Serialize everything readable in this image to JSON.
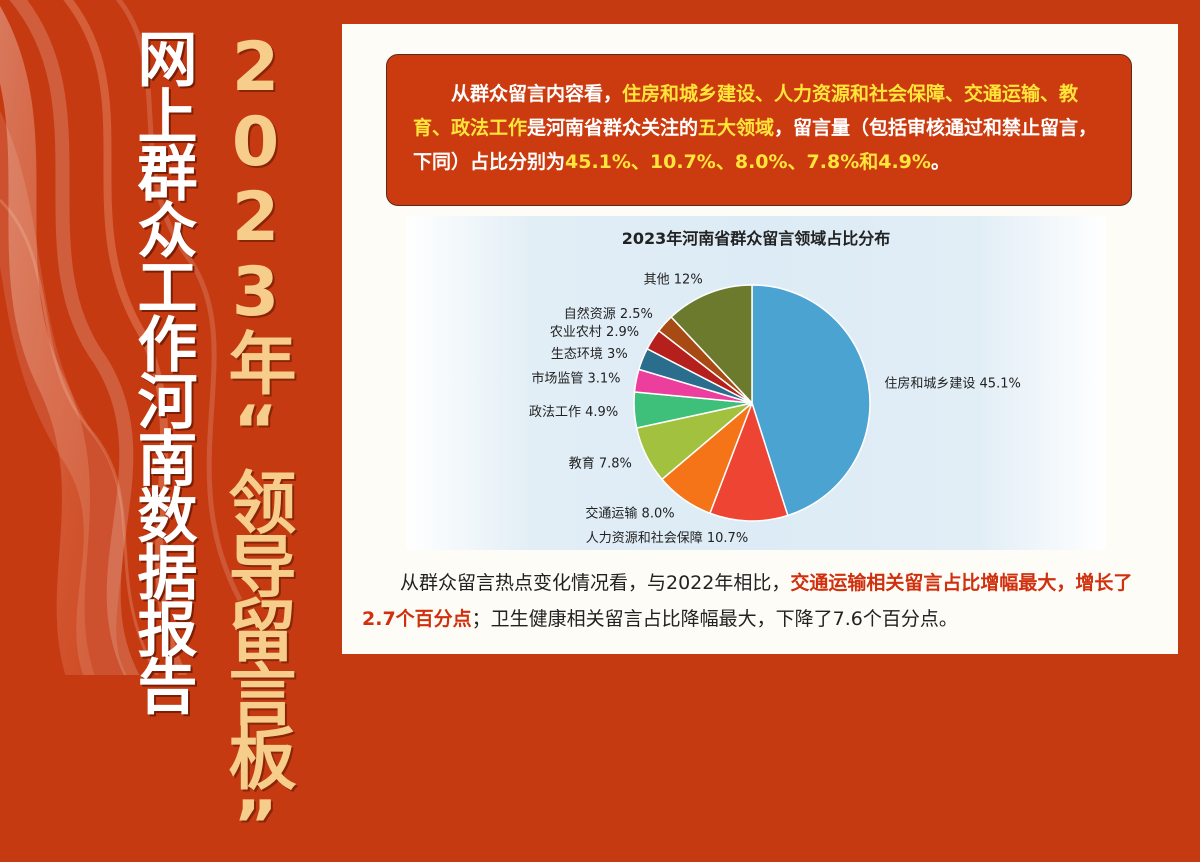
{
  "sidebar": {
    "title_main": "2023年“领导留言板”",
    "title_sub": "网上群众工作河南数据报告"
  },
  "callout": {
    "prefix": "从群众留言内容看，",
    "fields": "住房和城乡建设、人力资源和社会保障、交通运输、教育、政法工作",
    "middle1": "是河南省群众关注的",
    "five": "五大领域",
    "middle2": "，留言量（包括审核通过和禁止留言，下同）占比分别为",
    "values": "45.1%、10.7%、8.0%、7.8%和4.9%",
    "suffix": "。"
  },
  "bottom": {
    "part1": "从群众留言热点变化情况看，与2022年相比，",
    "hl1": "交通运输相关留言占比增幅最大，",
    "hl2": "增长了2.7个百分点",
    "part2": "；卫生健康相关留言占比降幅最大，下降了7.6个百分点。"
  },
  "chart_data": {
    "type": "pie",
    "title": "2023年河南省群众留言领域占比分布",
    "unit": "%",
    "slices": [
      {
        "label": "住房和城乡建设",
        "value": 45.1,
        "display": "45.1%",
        "color": "#4aa3d1"
      },
      {
        "label": "人力资源和社会保障",
        "value": 10.7,
        "display": "10.7%",
        "color": "#ee4433"
      },
      {
        "label": "交通运输",
        "value": 8.0,
        "display": "8.0%",
        "color": "#f57418"
      },
      {
        "label": "教育",
        "value": 7.8,
        "display": "7.8%",
        "color": "#a2c13f"
      },
      {
        "label": "政法工作",
        "value": 4.9,
        "display": "4.9%",
        "color": "#3ec07a"
      },
      {
        "label": "市场监管",
        "value": 3.1,
        "display": "3.1%",
        "color": "#ec3e9c"
      },
      {
        "label": "生态环境",
        "value": 3.0,
        "display": "3%",
        "color": "#2a6d8c"
      },
      {
        "label": "农业农村",
        "value": 2.9,
        "display": "2.9%",
        "color": "#b5201d"
      },
      {
        "label": "自然资源",
        "value": 2.5,
        "display": "2.5%",
        "color": "#a84a14"
      },
      {
        "label": "其他",
        "value": 12.0,
        "display": "12%",
        "color": "#6b7a2c"
      }
    ]
  }
}
